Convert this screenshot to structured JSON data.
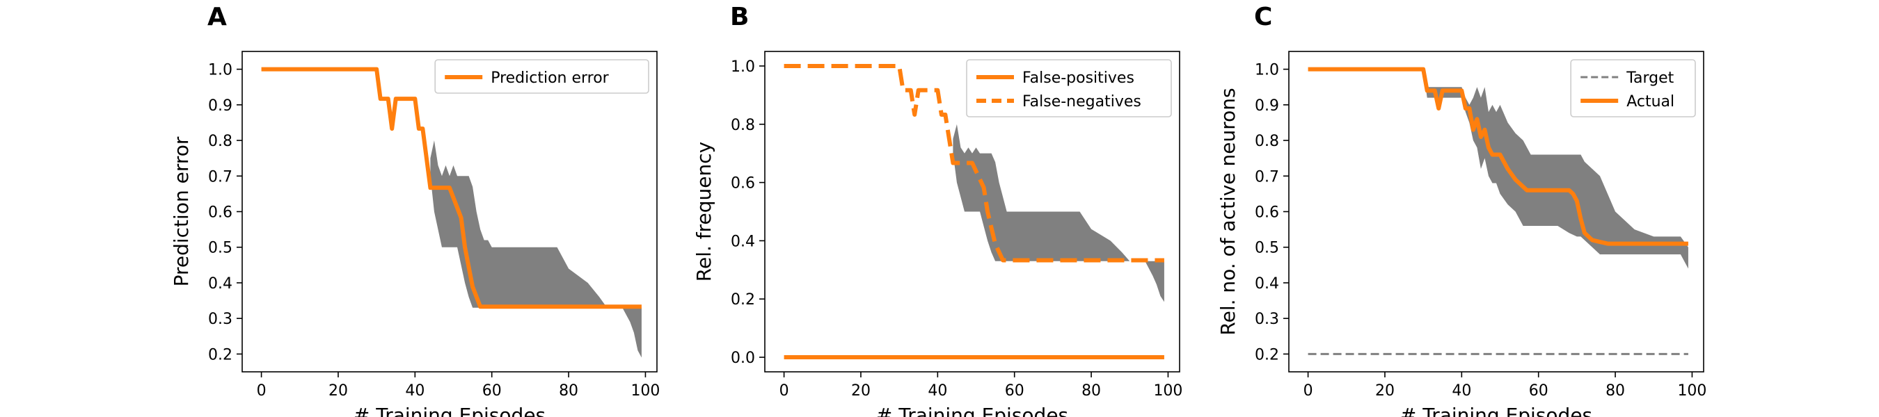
{
  "chart_data": [
    {
      "type": "line",
      "panel_label": "A",
      "xlabel": "# Training Episodes",
      "ylabel": "Prediction error",
      "xlim": [
        -5,
        103
      ],
      "ylim": [
        0.15,
        1.05
      ],
      "xticks": [
        0,
        20,
        40,
        60,
        80,
        100
      ],
      "yticks": [
        0.2,
        0.3,
        0.4,
        0.5,
        0.6,
        0.7,
        0.8,
        0.9,
        1.0
      ],
      "tick_decimals": 1,
      "legend_position": "top-right",
      "grid": false,
      "series": [
        {
          "name": "Prediction error",
          "color": "#ff7f0e",
          "style": "solid",
          "x": [
            0,
            30,
            31,
            33,
            34,
            35,
            40,
            41,
            42,
            43,
            44,
            45,
            46,
            47,
            48,
            49,
            50,
            51,
            52,
            53,
            54,
            55,
            56,
            57,
            60,
            80,
            99
          ],
          "y": [
            1.0,
            1.0,
            0.917,
            0.917,
            0.833,
            0.917,
            0.917,
            0.833,
            0.833,
            0.75,
            0.667,
            0.667,
            0.667,
            0.667,
            0.667,
            0.667,
            0.639,
            0.611,
            0.583,
            0.5,
            0.444,
            0.389,
            0.361,
            0.333,
            0.333,
            0.333,
            0.333
          ]
        }
      ],
      "bands": [
        {
          "color": "#808080",
          "x": [
            44,
            45,
            46,
            47,
            48,
            49,
            50,
            51,
            52,
            53,
            54,
            55,
            56,
            57,
            58,
            59,
            60,
            62,
            65,
            70,
            75,
            77,
            80,
            85,
            88,
            90,
            92,
            94,
            96,
            97,
            98,
            99
          ],
          "upper": [
            0.75,
            0.8,
            0.73,
            0.7,
            0.73,
            0.7,
            0.73,
            0.7,
            0.7,
            0.7,
            0.7,
            0.67,
            0.6,
            0.55,
            0.52,
            0.52,
            0.5,
            0.5,
            0.5,
            0.5,
            0.5,
            0.5,
            0.44,
            0.4,
            0.36,
            0.33,
            0.33,
            0.33,
            0.33,
            0.33,
            0.33,
            0.33
          ],
          "lower": [
            0.7,
            0.6,
            0.55,
            0.5,
            0.5,
            0.5,
            0.5,
            0.5,
            0.45,
            0.4,
            0.36,
            0.33,
            0.33,
            0.33,
            0.33,
            0.33,
            0.33,
            0.33,
            0.33,
            0.33,
            0.33,
            0.33,
            0.33,
            0.33,
            0.33,
            0.33,
            0.33,
            0.33,
            0.29,
            0.26,
            0.21,
            0.19
          ]
        }
      ]
    },
    {
      "type": "line",
      "panel_label": "B",
      "xlabel": "# Training Episodes",
      "ylabel": "Rel. frequency",
      "xlim": [
        -5,
        103
      ],
      "ylim": [
        -0.05,
        1.05
      ],
      "xticks": [
        0,
        20,
        40,
        60,
        80,
        100
      ],
      "yticks": [
        0.0,
        0.2,
        0.4,
        0.6,
        0.8,
        1.0
      ],
      "tick_decimals": 1,
      "legend_position": "top-right",
      "grid": false,
      "series": [
        {
          "name": "False-positives",
          "color": "#ff7f0e",
          "style": "solid",
          "x": [
            0,
            99
          ],
          "y": [
            0.0,
            0.0
          ]
        },
        {
          "name": "False-negatives",
          "color": "#ff7f0e",
          "style": "dashed",
          "x": [
            0,
            30,
            31,
            33,
            34,
            35,
            36,
            40,
            41,
            42,
            43,
            44,
            45,
            46,
            47,
            48,
            49,
            50,
            51,
            52,
            53,
            54,
            55,
            56,
            57,
            60,
            80,
            99
          ],
          "y": [
            1.0,
            1.0,
            0.917,
            0.917,
            0.833,
            0.917,
            0.917,
            0.917,
            0.833,
            0.833,
            0.75,
            0.667,
            0.667,
            0.667,
            0.667,
            0.667,
            0.667,
            0.639,
            0.611,
            0.583,
            0.5,
            0.444,
            0.389,
            0.361,
            0.333,
            0.333,
            0.333,
            0.333
          ]
        }
      ],
      "bands": [
        {
          "color": "#808080",
          "x": [
            44,
            45,
            46,
            47,
            48,
            49,
            50,
            51,
            52,
            53,
            54,
            55,
            56,
            57,
            58,
            59,
            60,
            62,
            65,
            70,
            75,
            77,
            80,
            85,
            88,
            90,
            92,
            94,
            96,
            97,
            98,
            99
          ],
          "upper": [
            0.75,
            0.8,
            0.72,
            0.7,
            0.72,
            0.7,
            0.72,
            0.7,
            0.7,
            0.7,
            0.7,
            0.67,
            0.6,
            0.55,
            0.5,
            0.5,
            0.5,
            0.5,
            0.5,
            0.5,
            0.5,
            0.5,
            0.44,
            0.4,
            0.36,
            0.33,
            0.33,
            0.33,
            0.33,
            0.33,
            0.33,
            0.33
          ],
          "lower": [
            0.7,
            0.6,
            0.55,
            0.5,
            0.5,
            0.5,
            0.5,
            0.5,
            0.45,
            0.4,
            0.36,
            0.33,
            0.33,
            0.33,
            0.33,
            0.33,
            0.33,
            0.33,
            0.33,
            0.33,
            0.33,
            0.33,
            0.33,
            0.33,
            0.33,
            0.33,
            0.33,
            0.33,
            0.28,
            0.25,
            0.21,
            0.19
          ]
        }
      ]
    },
    {
      "type": "line",
      "panel_label": "C",
      "xlabel": "# Training Episodes",
      "ylabel": "Rel. no. of active neurons",
      "xlim": [
        -5,
        103
      ],
      "ylim": [
        0.15,
        1.05
      ],
      "xticks": [
        0,
        20,
        40,
        60,
        80,
        100
      ],
      "yticks": [
        0.2,
        0.3,
        0.4,
        0.5,
        0.6,
        0.7,
        0.8,
        0.9,
        1.0
      ],
      "tick_decimals": 1,
      "legend_position": "top-right",
      "grid": false,
      "series": [
        {
          "name": "Target",
          "color": "#808080",
          "style": "thin-dashed",
          "x": [
            0,
            99
          ],
          "y": [
            0.2,
            0.2
          ]
        },
        {
          "name": "Actual",
          "color": "#ff7f0e",
          "style": "solid",
          "x": [
            0,
            30,
            31,
            33,
            34,
            35,
            36,
            38,
            40,
            41,
            42,
            43,
            44,
            45,
            46,
            47,
            48,
            50,
            52,
            54,
            56,
            57,
            58,
            60,
            62,
            64,
            66,
            68,
            69,
            70,
            71,
            72,
            74,
            76,
            78,
            80,
            85,
            90,
            95,
            99
          ],
          "y": [
            1.0,
            1.0,
            0.94,
            0.94,
            0.89,
            0.94,
            0.94,
            0.94,
            0.94,
            0.89,
            0.89,
            0.83,
            0.86,
            0.81,
            0.83,
            0.78,
            0.76,
            0.76,
            0.72,
            0.69,
            0.67,
            0.66,
            0.66,
            0.66,
            0.66,
            0.66,
            0.66,
            0.66,
            0.65,
            0.63,
            0.58,
            0.54,
            0.52,
            0.515,
            0.51,
            0.51,
            0.51,
            0.51,
            0.51,
            0.51
          ]
        }
      ],
      "bands": [
        {
          "color": "#808080",
          "x": [
            30,
            31,
            33,
            34,
            35,
            36,
            38,
            40,
            41,
            42,
            43,
            44,
            45,
            46,
            47,
            48,
            49,
            50,
            52,
            54,
            56,
            58,
            60,
            62,
            65,
            68,
            70,
            71,
            72,
            74,
            76,
            78,
            80,
            85,
            90,
            95,
            97,
            99
          ],
          "upper": [
            1.0,
            0.95,
            0.95,
            0.95,
            0.95,
            0.95,
            0.95,
            0.95,
            0.92,
            0.9,
            0.92,
            0.95,
            0.92,
            0.95,
            0.88,
            0.9,
            0.88,
            0.9,
            0.85,
            0.82,
            0.8,
            0.76,
            0.76,
            0.76,
            0.76,
            0.76,
            0.76,
            0.76,
            0.74,
            0.72,
            0.7,
            0.65,
            0.6,
            0.55,
            0.53,
            0.53,
            0.53,
            0.5
          ],
          "lower": [
            1.0,
            0.92,
            0.92,
            0.89,
            0.92,
            0.92,
            0.92,
            0.92,
            0.88,
            0.85,
            0.8,
            0.78,
            0.72,
            0.75,
            0.7,
            0.68,
            0.68,
            0.65,
            0.62,
            0.6,
            0.56,
            0.56,
            0.56,
            0.56,
            0.56,
            0.54,
            0.53,
            0.53,
            0.52,
            0.5,
            0.48,
            0.48,
            0.48,
            0.48,
            0.48,
            0.48,
            0.48,
            0.44
          ]
        }
      ]
    }
  ]
}
